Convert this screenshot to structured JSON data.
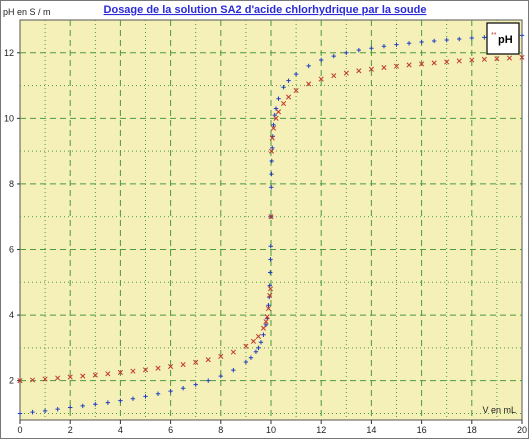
{
  "chart_data": {
    "type": "scatter",
    "title": "Dosage de la solution SA2 d'acide chlorhydrique par la soude",
    "xlabel": "V en mL",
    "ylabel": "pH en S / m",
    "xlim": [
      0,
      20
    ],
    "ylim": [
      0.8,
      13
    ],
    "x_ticks": [
      0,
      2,
      4,
      6,
      8,
      10,
      12,
      14,
      16,
      18,
      20
    ],
    "y_ticks": [
      2,
      4,
      6,
      8,
      10,
      12
    ],
    "grid": true,
    "legend": {
      "position": "top-right",
      "label": "pH",
      "marker": "**"
    },
    "colors": {
      "series_blue": "#1f3fbf",
      "series_red": "#c0392b",
      "plot_bg": "#f5f0b8",
      "grid": "#4c9a3c"
    },
    "series": [
      {
        "marker": "+",
        "color": "#1f3fbf",
        "x": [
          0,
          0.5,
          1,
          1.5,
          2,
          2.5,
          3,
          3.5,
          4,
          4.5,
          5,
          5.5,
          6,
          6.5,
          7,
          7.5,
          8,
          8.5,
          9,
          9.2,
          9.4,
          9.5,
          9.6,
          9.7,
          9.8,
          9.85,
          9.9,
          9.93,
          9.95,
          9.97,
          9.98,
          9.99,
          10.0,
          10.01,
          10.02,
          10.03,
          10.05,
          10.07,
          10.1,
          10.15,
          10.2,
          10.3,
          10.5,
          10.7,
          11,
          11.5,
          12,
          12.5,
          13,
          13.5,
          14,
          14.5,
          15,
          15.5,
          16,
          16.5,
          17,
          17.5,
          18,
          18.5,
          19,
          19.5,
          20
        ],
        "y": [
          1.0,
          1.04,
          1.08,
          1.13,
          1.18,
          1.23,
          1.28,
          1.33,
          1.39,
          1.45,
          1.52,
          1.6,
          1.68,
          1.77,
          1.88,
          2.0,
          2.14,
          2.32,
          2.57,
          2.7,
          2.88,
          3.0,
          3.17,
          3.4,
          3.7,
          3.9,
          4.3,
          4.55,
          4.9,
          5.3,
          5.7,
          6.1,
          7.0,
          7.9,
          8.3,
          8.7,
          9.1,
          9.45,
          9.8,
          10.1,
          10.3,
          10.6,
          10.95,
          11.15,
          11.35,
          11.6,
          11.78,
          11.9,
          12.0,
          12.08,
          12.14,
          12.2,
          12.25,
          12.29,
          12.33,
          12.36,
          12.39,
          12.42,
          12.45,
          12.47,
          12.49,
          12.51,
          12.53
        ]
      },
      {
        "marker": "×",
        "color": "#c0392b",
        "x": [
          0,
          0.5,
          1,
          1.5,
          2,
          2.5,
          3,
          3.5,
          4,
          4.5,
          5,
          5.5,
          6,
          6.5,
          7,
          7.5,
          8,
          8.5,
          9,
          9.3,
          9.5,
          9.7,
          9.8,
          9.85,
          9.9,
          9.95,
          9.98,
          10.0,
          10.02,
          10.05,
          10.1,
          10.2,
          10.3,
          10.5,
          10.7,
          11,
          11.5,
          12,
          12.5,
          13,
          13.5,
          14,
          14.5,
          15,
          15.5,
          16,
          16.5,
          17,
          17.5,
          18,
          18.5,
          19,
          19.5,
          20
        ],
        "y": [
          2.0,
          2.02,
          2.05,
          2.08,
          2.11,
          2.14,
          2.17,
          2.21,
          2.25,
          2.29,
          2.33,
          2.38,
          2.43,
          2.49,
          2.56,
          2.64,
          2.74,
          2.87,
          3.05,
          3.2,
          3.35,
          3.6,
          3.8,
          3.95,
          4.2,
          4.6,
          4.8,
          7.0,
          9.0,
          9.4,
          9.7,
          10.0,
          10.2,
          10.45,
          10.65,
          10.85,
          11.05,
          11.2,
          11.3,
          11.38,
          11.45,
          11.5,
          11.55,
          11.59,
          11.63,
          11.66,
          11.69,
          11.72,
          11.75,
          11.78,
          11.8,
          11.82,
          11.84,
          11.86
        ]
      }
    ]
  }
}
